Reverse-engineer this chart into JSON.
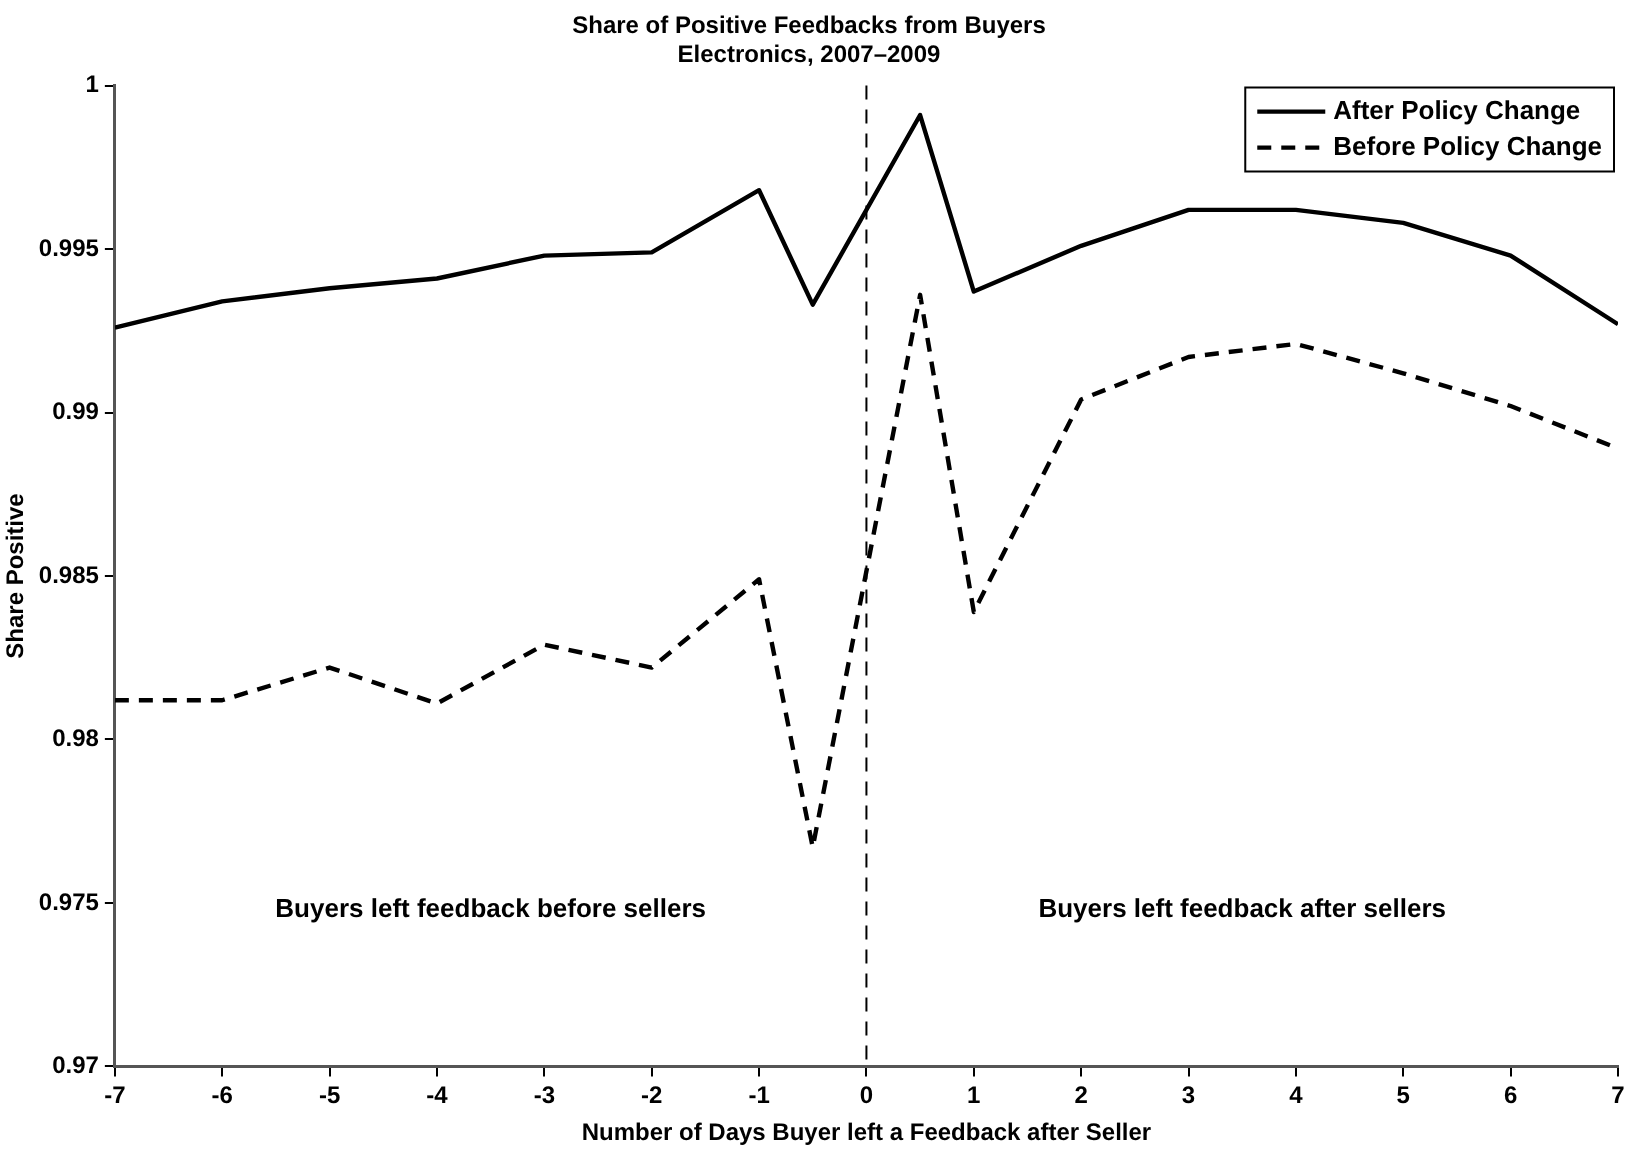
{
  "chart_data": {
    "type": "line",
    "title": "Share of Positive Feedbacks from Buyers",
    "subtitle": "Electronics, 2007–2009",
    "xlabel": "Number of Days Buyer left a Feedback after Seller",
    "ylabel": "Share Positive",
    "x": [
      -7,
      -6,
      -5,
      -4,
      -3,
      -2,
      -1,
      -0.5,
      0.5,
      1,
      2,
      3,
      4,
      5,
      6,
      7
    ],
    "series": [
      {
        "name": "After Policy Change",
        "color": "#000000",
        "line_style": "solid",
        "values": [
          0.9926,
          0.9934,
          0.9938,
          0.9941,
          0.9948,
          0.9949,
          0.9968,
          0.9933,
          0.9991,
          0.9937,
          0.9951,
          0.9962,
          0.9962,
          0.9958,
          0.9948,
          0.9927
        ]
      },
      {
        "name": "Before Policy Change",
        "color": "#000000",
        "line_style": "dashed",
        "values": [
          0.9812,
          0.9812,
          0.9822,
          0.9811,
          0.9829,
          0.9822,
          0.9849,
          0.9767,
          0.9936,
          0.9839,
          0.9904,
          0.9917,
          0.9921,
          0.9912,
          0.9902,
          0.9889
        ]
      }
    ],
    "xlim": [
      -7,
      7
    ],
    "xticks": [
      -7,
      -6,
      -5,
      -4,
      -3,
      -2,
      -1,
      0,
      1,
      2,
      3,
      4,
      5,
      6,
      7
    ],
    "ylim": [
      0.97,
      1
    ],
    "yticks": [
      0.97,
      0.975,
      0.98,
      0.985,
      0.99,
      0.995,
      1
    ],
    "ref_lines": [
      {
        "axis": "x",
        "value": 0,
        "color": "#000000",
        "line_style": "dashed"
      }
    ],
    "annotations": [
      "Buyers left feedback before sellers",
      "Buyers left feedback after sellers"
    ],
    "grid": false,
    "legend": "top right",
    "marker": "none"
  }
}
